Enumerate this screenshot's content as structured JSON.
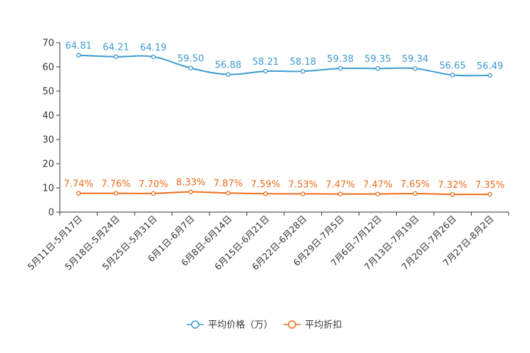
{
  "chart_data": {
    "type": "line",
    "categories": [
      "5月11日-5月17日",
      "5月18日-5月24日",
      "5月25日-5月31日",
      "6月1日-6月7日",
      "6月8日-6月14日",
      "6月15日-6月21日",
      "6月22日-6月28日",
      "6月29日-7月5日",
      "7月6日-7月12日",
      "7月13日-7月19日",
      "7月20日-7月26日",
      "7月27日-8月2日"
    ],
    "ylim": [
      0,
      70
    ],
    "yticks": [
      0,
      10,
      20,
      30,
      40,
      50,
      60,
      70
    ],
    "series": [
      {
        "name": "平均价格（万）",
        "color": "#3d9bd0",
        "values": [
          64.81,
          64.21,
          64.19,
          59.5,
          56.88,
          58.21,
          58.18,
          59.38,
          59.35,
          59.34,
          56.65,
          56.49
        ],
        "labels": [
          "64.81",
          "64.21",
          "64.19",
          "59.50",
          "56.88",
          "58.21",
          "58.18",
          "59.38",
          "59.35",
          "59.34",
          "56.65",
          "56.49"
        ]
      },
      {
        "name": "平均折扣",
        "color": "#ee6d1c",
        "values": [
          7.74,
          7.76,
          7.7,
          8.33,
          7.87,
          7.59,
          7.53,
          7.47,
          7.47,
          7.65,
          7.32,
          7.35
        ],
        "labels": [
          "7.74%",
          "7.76%",
          "7.70%",
          "8.33%",
          "7.87%",
          "7.59%",
          "7.53%",
          "7.47%",
          "7.47%",
          "7.65%",
          "7.32%",
          "7.35%"
        ]
      }
    ],
    "legend_position": "bottom-center"
  }
}
